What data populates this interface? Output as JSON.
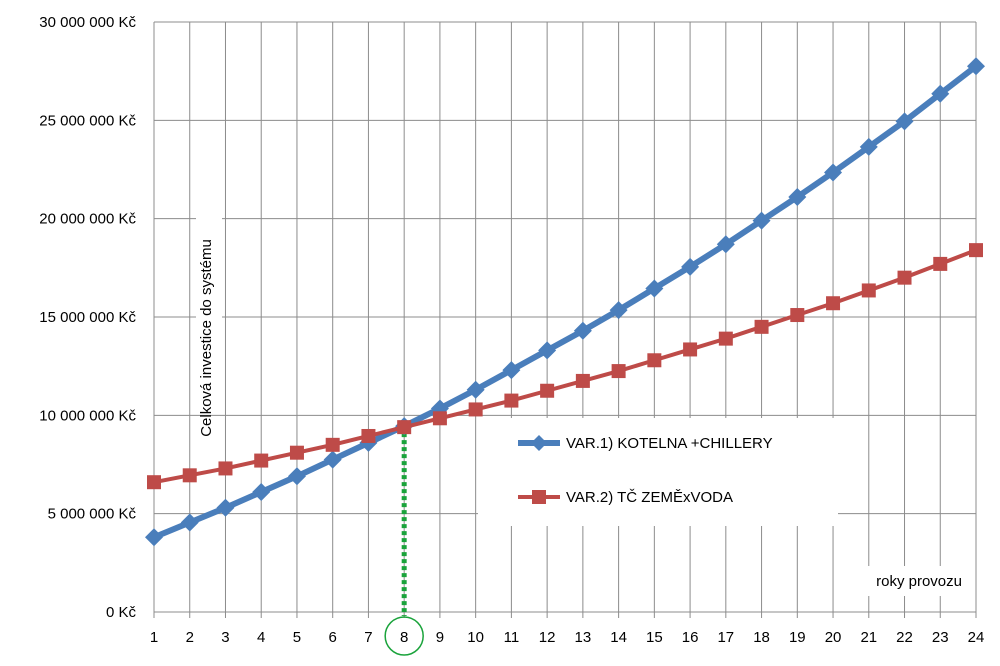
{
  "chart_data": {
    "type": "line",
    "ylabel": "Celková investice do systému",
    "xlabel": "roky provozu",
    "categories": [
      "1",
      "2",
      "3",
      "4",
      "5",
      "6",
      "7",
      "8",
      "9",
      "10",
      "11",
      "12",
      "13",
      "14",
      "15",
      "16",
      "17",
      "18",
      "19",
      "20",
      "21",
      "22",
      "23",
      "24"
    ],
    "y_tick_labels": [
      "0 Kč",
      "5 000 000 Kč",
      "10 000 000 Kč",
      "15 000 000 Kč",
      "20 000 000 Kč",
      "25 000 000 Kč",
      "30 000 000 Kč"
    ],
    "ylim": [
      0,
      30000000
    ],
    "grid": true,
    "legend_position": "center-right",
    "highlighted_category": "8",
    "series": [
      {
        "name": "VAR.1) KOTELNA +CHILLERY",
        "color": "#4a7ebb",
        "marker": "diamond",
        "values": [
          3800000,
          4550000,
          5300000,
          6100000,
          6900000,
          7750000,
          8600000,
          9450000,
          10350000,
          11300000,
          12300000,
          13300000,
          14300000,
          15350000,
          16450000,
          17550000,
          18700000,
          19900000,
          21100000,
          22350000,
          23650000,
          24950000,
          26350000,
          27750000
        ]
      },
      {
        "name": "VAR.2) TČ ZEMĚxVODA",
        "color": "#be4b48",
        "marker": "square",
        "values": [
          6600000,
          6950000,
          7300000,
          7700000,
          8100000,
          8500000,
          8950000,
          9400000,
          9850000,
          10300000,
          10750000,
          11250000,
          11750000,
          12250000,
          12800000,
          13350000,
          13900000,
          14500000,
          15100000,
          15700000,
          16350000,
          17000000,
          17700000,
          18400000
        ]
      }
    ],
    "annotation_color": "#1aa33b"
  }
}
